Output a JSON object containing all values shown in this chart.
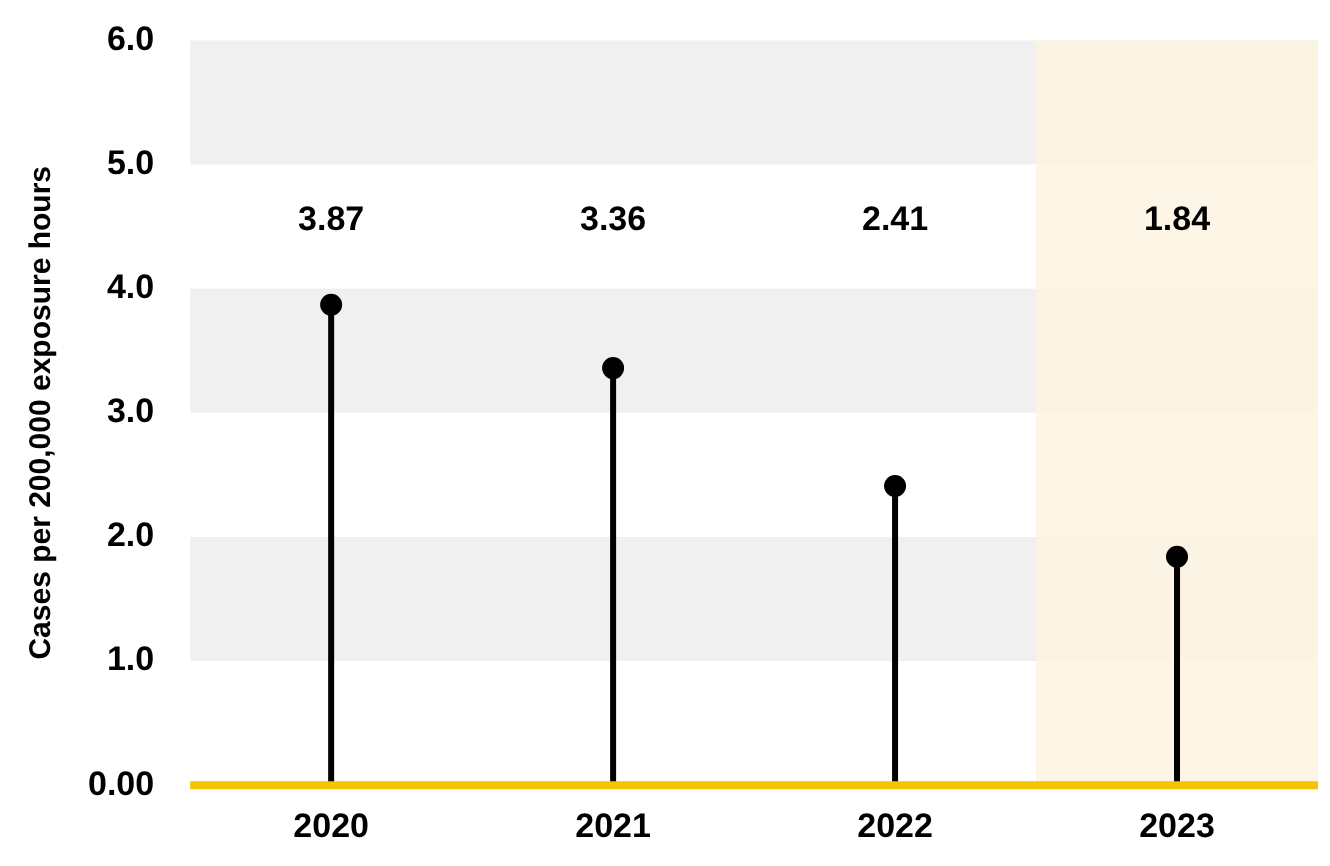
{
  "chart_data": {
    "type": "lollipop",
    "ylabel": "Cases per 200,000 exposure hours",
    "categories": [
      "2020",
      "2021",
      "2022",
      "2023"
    ],
    "values": [
      3.87,
      3.36,
      2.41,
      1.84
    ],
    "color": "#000000",
    "ylim": [
      0,
      6
    ],
    "yticks": [
      {
        "value": 0,
        "label": "0.00"
      },
      {
        "value": 1,
        "label": "1.0"
      },
      {
        "value": 2,
        "label": "2.0"
      },
      {
        "value": 3,
        "label": "3.0"
      },
      {
        "value": 4,
        "label": "4.0"
      },
      {
        "value": 5,
        "label": "5.0"
      },
      {
        "value": 6,
        "label": "6.0"
      }
    ],
    "marker": "circle",
    "annotations": [
      "3.87",
      "3.36",
      "2.41",
      "1.84"
    ],
    "bands": [
      {
        "axis": "y",
        "from": 1,
        "to": 2,
        "color": "#f0f0f0"
      },
      {
        "axis": "y",
        "from": 3,
        "to": 4,
        "color": "#f0f0f0"
      },
      {
        "axis": "y",
        "from": 5,
        "to": 6,
        "color": "#f0f0f0"
      },
      {
        "axis": "x",
        "from": "2023",
        "to": "2023",
        "color": "#fdf3e1"
      }
    ]
  }
}
